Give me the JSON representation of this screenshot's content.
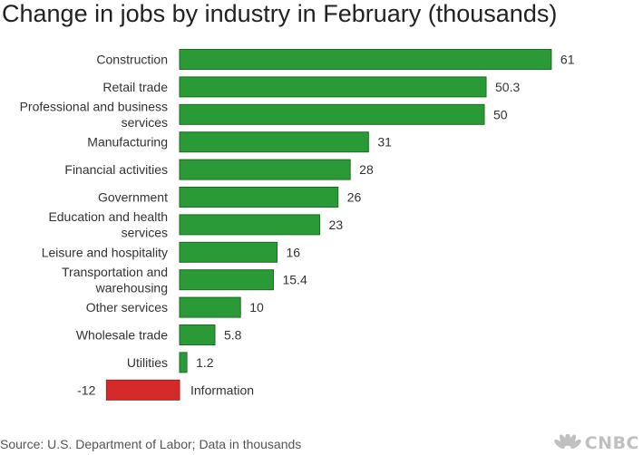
{
  "chart_data": {
    "type": "bar",
    "orientation": "horizontal",
    "title": "Change in jobs by industry in February (thousands)",
    "categories": [
      "Construction",
      "Retail trade",
      "Professional and business services",
      "Manufacturing",
      "Financial activities",
      "Government",
      "Education and health services",
      "Leisure and hospitality",
      "Transportation and warehousing",
      "Other services",
      "Wholesale trade",
      "Utilities",
      "Information"
    ],
    "category_lines": [
      [
        "Construction"
      ],
      [
        "Retail trade"
      ],
      [
        "Professional and business",
        "services"
      ],
      [
        "Manufacturing"
      ],
      [
        "Financial activities"
      ],
      [
        "Government"
      ],
      [
        "Education and health",
        "services"
      ],
      [
        "Leisure and hospitality"
      ],
      [
        "Transportation and",
        "warehousing"
      ],
      [
        "Other services"
      ],
      [
        "Wholesale trade"
      ],
      [
        "Utilities"
      ],
      [
        "Information"
      ]
    ],
    "values": [
      61,
      50.3,
      50,
      31,
      28,
      26,
      23,
      16,
      15.4,
      10,
      5.8,
      1.2,
      -12
    ],
    "value_labels": [
      "61",
      "50.3",
      "50",
      "31",
      "28",
      "26",
      "23",
      "16",
      "15.4",
      "10",
      "5.8",
      "1.2",
      "-12"
    ],
    "xlim": [
      -12,
      61
    ],
    "grid": false,
    "legend": "none",
    "colors": {
      "positive": "#2a9a36",
      "negative": "#d42a2a",
      "outline": "#1f6b26"
    }
  },
  "source": "Source: U.S. Department of Labor; Data in thousands",
  "logo_text": "CNBC",
  "logo_icon": "nbc-peacock-icon"
}
